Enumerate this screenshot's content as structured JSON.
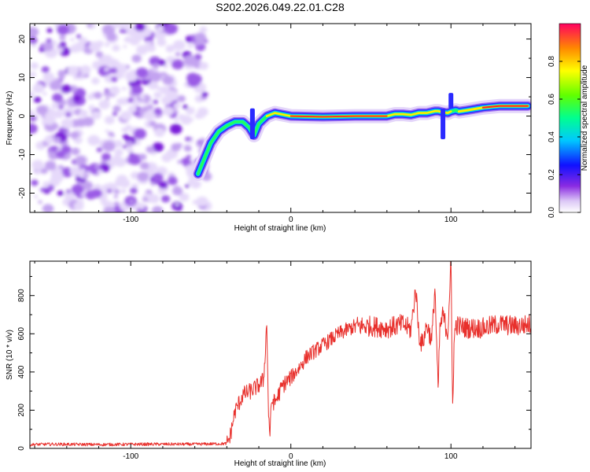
{
  "figure": {
    "title": "S202.2026.049.22.01.C28"
  },
  "chart_data": [
    {
      "type": "heatmap",
      "title": "S202.2026.049.22.01.C28",
      "xlabel": "Height of straight line (km)",
      "ylabel": "Frequency (Hz)",
      "xlim": [
        -163,
        150
      ],
      "ylim": [
        -25,
        24
      ],
      "xticks": [
        -100,
        0,
        100
      ],
      "xtick_labels": [
        "-100",
        "0",
        "100"
      ],
      "yticks": [
        20,
        10,
        0,
        -10,
        -20
      ],
      "ytick_labels": [
        "20",
        "10",
        "0",
        "-10",
        "-20"
      ],
      "noise_region_x": [
        -163,
        -52
      ],
      "ridge": {
        "x": [
          -58,
          -55,
          -50,
          -45,
          -40,
          -35,
          -30,
          -26,
          -23,
          -20,
          -15,
          -10,
          0,
          20,
          40,
          60,
          65,
          70,
          75,
          80,
          85,
          90,
          92,
          95,
          98,
          100,
          103,
          105,
          110,
          120,
          130,
          140,
          148
        ],
        "y": [
          -15,
          -12,
          -7,
          -4,
          -2.5,
          -1.5,
          -1.5,
          -3,
          -5,
          -2,
          0,
          0.8,
          0,
          -0.2,
          0,
          0,
          0.5,
          0.5,
          0.3,
          0.8,
          0.8,
          1.3,
          1.3,
          1,
          0.8,
          1.2,
          1.5,
          1.2,
          1.5,
          2.2,
          2.6,
          2.6,
          2.6
        ]
      },
      "colorbar": {
        "label": "Normalized spectral amplitude",
        "ticks": [
          0.0,
          0.2,
          0.4,
          0.6,
          0.8
        ],
        "tick_labels": [
          "0.0",
          "0.2",
          "0.4",
          "0.6",
          "0.8"
        ]
      }
    },
    {
      "type": "line",
      "xlabel": "Height of straight line (km)",
      "ylabel": "SNR (10 * v/v)",
      "xlim": [
        -163,
        150
      ],
      "ylim": [
        0,
        980
      ],
      "xticks": [
        -100,
        0,
        100
      ],
      "xtick_labels": [
        "-100",
        "0",
        "100"
      ],
      "yticks": [
        0,
        200,
        400,
        600,
        800
      ],
      "ytick_labels": [
        "0",
        "200",
        "400",
        "600",
        "800"
      ],
      "series": [
        {
          "name": "SNR",
          "color": "#e8302c",
          "x": [
            -163,
            -150,
            -120,
            -90,
            -60,
            -40,
            -38,
            -35,
            -30,
            -25,
            -20,
            -17,
            -15,
            -14,
            -13,
            -12,
            -10,
            -5,
            0,
            5,
            10,
            20,
            30,
            40,
            50,
            60,
            70,
            75,
            78,
            80,
            82,
            85,
            88,
            90,
            92,
            93,
            95,
            98,
            100,
            101,
            102,
            103,
            105,
            110,
            120,
            130,
            140,
            150
          ],
          "y": [
            20,
            22,
            20,
            22,
            22,
            25,
            60,
            190,
            280,
            300,
            330,
            360,
            660,
            180,
            80,
            250,
            240,
            330,
            370,
            420,
            480,
            540,
            600,
            640,
            640,
            630,
            650,
            620,
            840,
            600,
            540,
            650,
            560,
            850,
            280,
            620,
            700,
            600,
            980,
            220,
            560,
            650,
            640,
            630,
            630,
            650,
            640,
            650
          ]
        }
      ]
    }
  ]
}
